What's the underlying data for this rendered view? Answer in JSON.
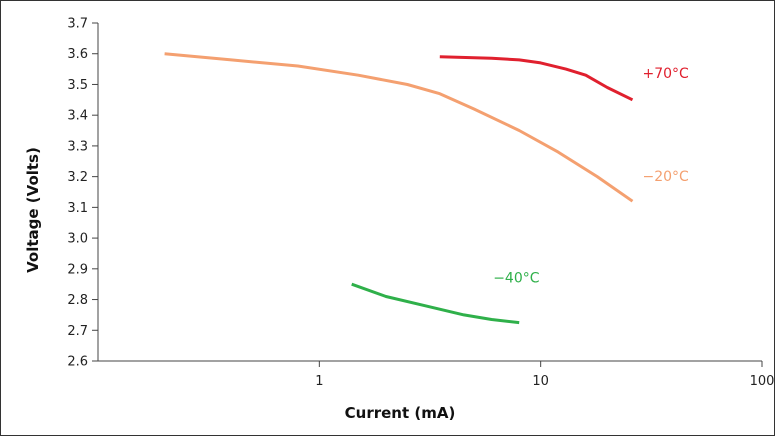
{
  "chart_data": {
    "type": "line",
    "title": "",
    "xlabel": "Current (mA)",
    "ylabel": "Voltage (Volts)",
    "xscale": "log",
    "xlim": [
      0.1,
      100
    ],
    "ylim": [
      2.6,
      3.7
    ],
    "x_tick_labels": [
      "1",
      "10",
      "100"
    ],
    "x_tick_values": [
      1,
      10,
      100
    ],
    "y_tick_labels": [
      "2.6",
      "2.7",
      "2.8",
      "2.9",
      "3.0",
      "3.1",
      "3.2",
      "3.3",
      "3.4",
      "3.5",
      "3.6",
      "3.7"
    ],
    "y_tick_values": [
      2.6,
      2.7,
      2.8,
      2.9,
      3.0,
      3.1,
      3.2,
      3.3,
      3.4,
      3.5,
      3.6,
      3.7
    ],
    "grid": false,
    "legend": "none",
    "series": [
      {
        "name": "+70°C",
        "color": "#e0202e",
        "x": [
          3.5,
          6.0,
          8.0,
          10.0,
          13.0,
          16.0,
          20.0,
          26.0
        ],
        "y": [
          3.59,
          3.585,
          3.58,
          3.57,
          3.55,
          3.53,
          3.49,
          3.45
        ]
      },
      {
        "name": "−20°C",
        "color": "#f4a070",
        "x": [
          0.2,
          0.4,
          0.8,
          1.5,
          2.5,
          3.5,
          5.0,
          8.0,
          12.0,
          18.0,
          26.0
        ],
        "y": [
          3.6,
          3.58,
          3.56,
          3.53,
          3.5,
          3.47,
          3.42,
          3.35,
          3.28,
          3.2,
          3.12
        ]
      },
      {
        "name": "−40°C",
        "color": "#2fb04a",
        "x": [
          1.4,
          2.0,
          3.0,
          4.5,
          6.0,
          8.0
        ],
        "y": [
          2.85,
          2.81,
          2.78,
          2.75,
          2.735,
          2.725
        ]
      }
    ]
  }
}
